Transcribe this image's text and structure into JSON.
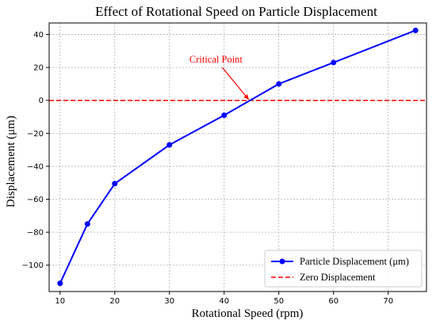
{
  "chart_data": {
    "type": "line",
    "title": "Effect of Rotational Speed on Particle Displacement",
    "xlabel": "Rotational Speed (rpm)",
    "ylabel": "Displacement (μm)",
    "xlim": [
      8,
      77
    ],
    "ylim": [
      -116,
      47
    ],
    "xticks": [
      10,
      20,
      30,
      40,
      50,
      60,
      70
    ],
    "yticks": [
      -100,
      -80,
      -60,
      -40,
      -20,
      0,
      20,
      40
    ],
    "grid": true,
    "legend_position": "lower-right",
    "series": [
      {
        "name": "Particle Displacement (μm)",
        "color": "#0000ff",
        "marker": "circle",
        "x": [
          10,
          15,
          20,
          30,
          40,
          50,
          60,
          75
        ],
        "y": [
          -111,
          -75,
          -50.5,
          -27,
          -9,
          10,
          23,
          42.5
        ]
      }
    ],
    "reference_lines": [
      {
        "name": "Zero Displacement",
        "y": 0,
        "color": "#ff0000",
        "style": "dashed"
      }
    ],
    "annotations": [
      {
        "text": "Critical Point",
        "color": "#ff0000",
        "point_x": 44.5,
        "point_y": 0,
        "text_x": 38.5,
        "text_y": 20
      }
    ]
  }
}
